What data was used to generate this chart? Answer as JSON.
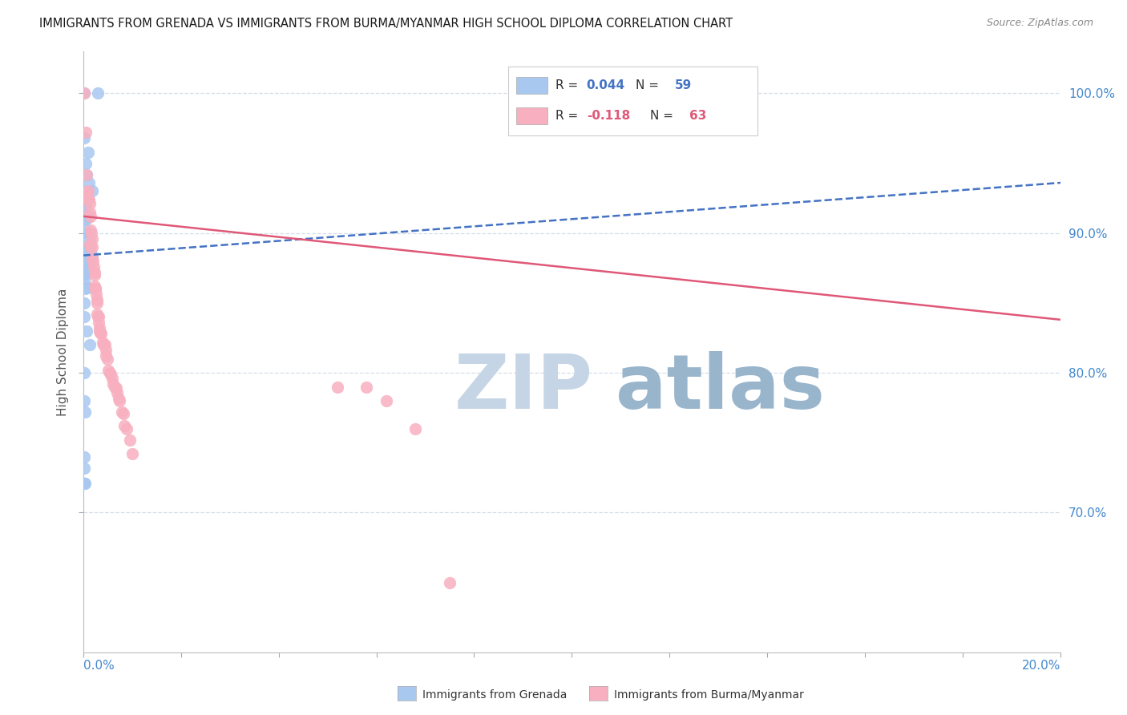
{
  "title": "IMMIGRANTS FROM GRENADA VS IMMIGRANTS FROM BURMA/MYANMAR HIGH SCHOOL DIPLOMA CORRELATION CHART",
  "source": "Source: ZipAtlas.com",
  "ylabel": "High School Diploma",
  "watermark_zip": "ZIP",
  "watermark_atlas": "atlas",
  "legend_blue_r": "0.044",
  "legend_blue_n": "59",
  "legend_pink_r": "-0.118",
  "legend_pink_n": "63",
  "blue_x": [
    0.0002,
    0.003,
    0.0002,
    0.001,
    0.0005,
    0.0008,
    0.0012,
    0.0018,
    0.0008,
    0.0003,
    0.0004,
    0.0005,
    0.0004,
    0.0003,
    0.0006,
    0.0004,
    0.0003,
    0.0007,
    0.0006,
    0.001,
    0.0012,
    0.0015,
    0.0009,
    0.0004,
    0.0011,
    0.0016,
    0.0013,
    0.0008,
    0.0004,
    0.0005,
    0.0003,
    0.0018,
    0.0007,
    0.0004,
    0.0014,
    0.0003,
    0.0004,
    0.0006,
    0.0003,
    0.0004,
    0.0003,
    0.0003,
    0.0004,
    0.0003,
    0.0003,
    0.0009,
    0.0004,
    0.0003,
    0.0003,
    0.0008,
    0.0014,
    0.0003,
    0.0003,
    0.0004,
    0.0003,
    0.0003,
    0.0002,
    0.0003,
    0.0004
  ],
  "blue_y": [
    1.0,
    1.0,
    0.968,
    0.958,
    0.95,
    0.942,
    0.936,
    0.93,
    0.925,
    0.924,
    0.921,
    0.92,
    0.919,
    0.915,
    0.912,
    0.91,
    0.91,
    0.91,
    0.902,
    0.9,
    0.895,
    0.892,
    0.889,
    0.889,
    0.886,
    0.886,
    0.885,
    0.884,
    0.884,
    0.884,
    0.882,
    0.884,
    0.881,
    0.88,
    0.88,
    0.879,
    0.879,
    0.88,
    0.88,
    0.879,
    0.876,
    0.872,
    0.871,
    0.87,
    0.866,
    0.861,
    0.86,
    0.85,
    0.84,
    0.83,
    0.82,
    0.8,
    0.78,
    0.772,
    0.74,
    0.732,
    0.721,
    0.721,
    0.721
  ],
  "pink_x": [
    0.0002,
    0.0005,
    0.0008,
    0.001,
    0.0004,
    0.0008,
    0.001,
    0.0012,
    0.0013,
    0.0014,
    0.0015,
    0.0016,
    0.0017,
    0.0018,
    0.0014,
    0.0015,
    0.0018,
    0.0019,
    0.002,
    0.0022,
    0.0024,
    0.0024,
    0.0024,
    0.0026,
    0.0026,
    0.0027,
    0.0028,
    0.0028,
    0.0029,
    0.003,
    0.0031,
    0.0032,
    0.0033,
    0.0033,
    0.0035,
    0.0036,
    0.004,
    0.0041,
    0.0045,
    0.0046,
    0.0047,
    0.005,
    0.0051,
    0.0055,
    0.0056,
    0.006,
    0.0062,
    0.0065,
    0.0068,
    0.007,
    0.0072,
    0.0075,
    0.008,
    0.0082,
    0.0085,
    0.009,
    0.0095,
    0.01,
    0.052,
    0.058,
    0.062,
    0.068,
    0.075
  ],
  "pink_y": [
    1.0,
    0.972,
    0.942,
    0.93,
    0.928,
    0.928,
    0.924,
    0.924,
    0.921,
    0.915,
    0.912,
    0.902,
    0.9,
    0.896,
    0.892,
    0.89,
    0.89,
    0.882,
    0.88,
    0.876,
    0.872,
    0.87,
    0.862,
    0.86,
    0.86,
    0.856,
    0.852,
    0.85,
    0.842,
    0.84,
    0.84,
    0.836,
    0.832,
    0.83,
    0.829,
    0.828,
    0.822,
    0.82,
    0.82,
    0.816,
    0.812,
    0.81,
    0.802,
    0.8,
    0.799,
    0.796,
    0.792,
    0.79,
    0.789,
    0.786,
    0.782,
    0.78,
    0.772,
    0.771,
    0.762,
    0.76,
    0.752,
    0.742,
    0.79,
    0.79,
    0.78,
    0.76,
    0.65
  ],
  "blue_color": "#a8c8f0",
  "pink_color": "#f8b0c0",
  "blue_line_color": "#4472c4",
  "pink_line_color": "#e05878",
  "grid_color": "#d5dde8",
  "title_color": "#1a1a1a",
  "source_color": "#888888",
  "axis_label_color": "#4488cc",
  "watermark_zip_color": "#c5d5e5",
  "watermark_atlas_color": "#99b5cc",
  "xlim": [
    0.0,
    0.2
  ],
  "ylim": [
    0.6,
    1.03
  ],
  "yticks": [
    0.7,
    0.8,
    0.9,
    1.0
  ],
  "ytick_labels": [
    "70.0%",
    "80.0%",
    "90.0%",
    "100.0%"
  ]
}
